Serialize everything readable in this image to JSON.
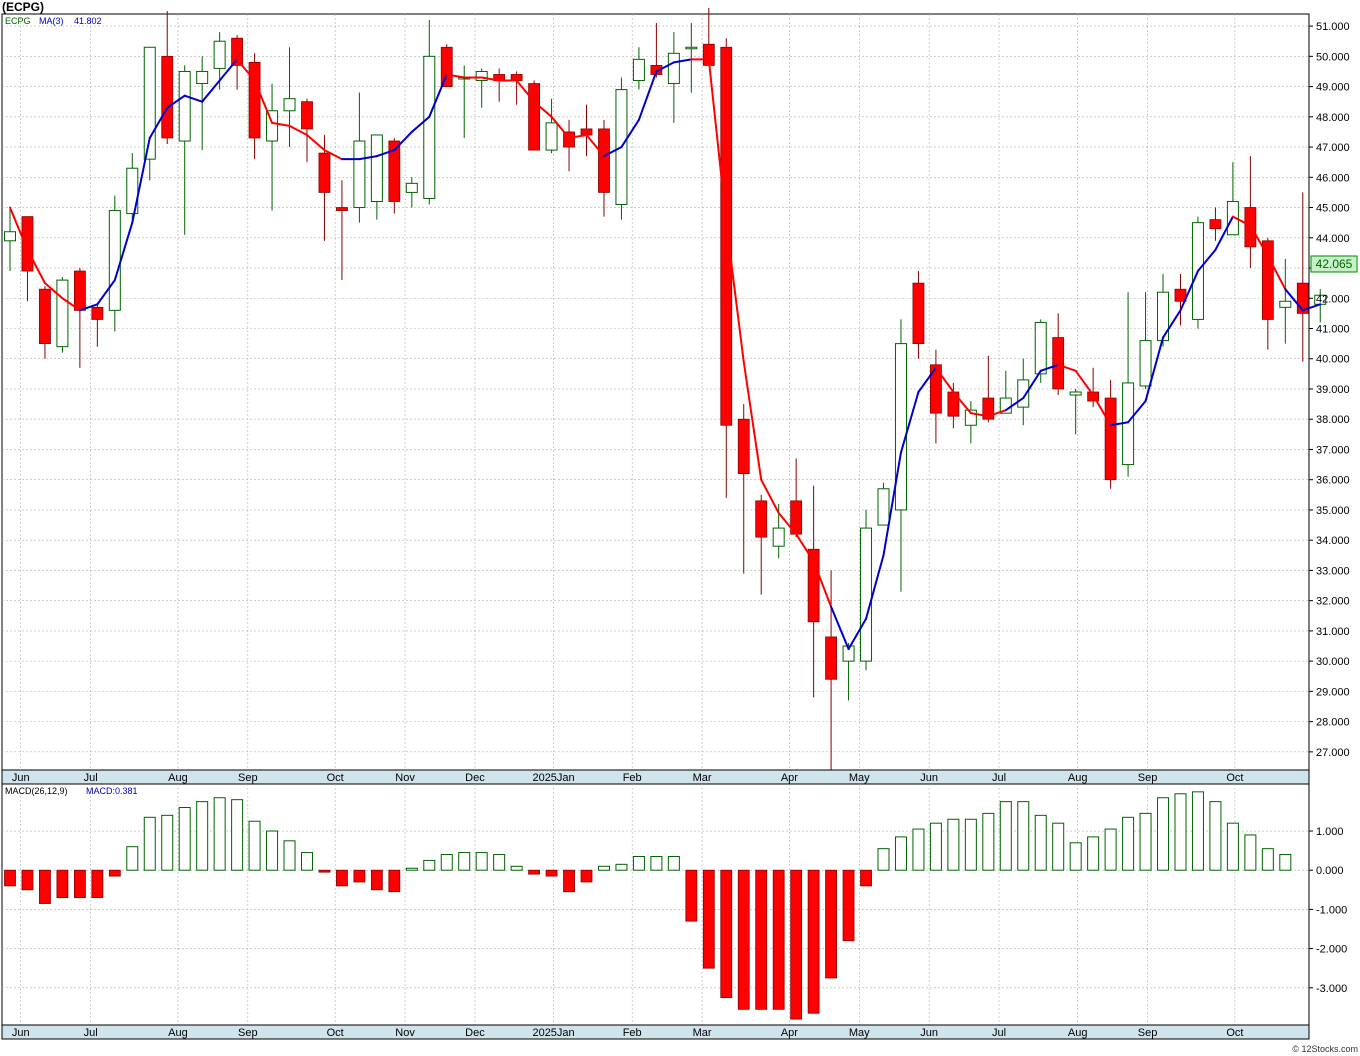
{
  "ticker_title": "(ECPG)",
  "legend": {
    "symbol": "ECPG",
    "ma_label": "MA(3)",
    "ma_value": "41.802"
  },
  "macd_legend": {
    "params": "MACD(26,12,9)",
    "value": "MACD:0.381"
  },
  "last_price_label": "42.065",
  "credit": "© 12Stocks.com",
  "colors": {
    "up_candle": "#006400",
    "down_candle": "#ff0000",
    "ma_up": "#0000cc",
    "ma_down": "#ff0000",
    "axis_band": "#d0e4ec",
    "last_price_bg": "#c8f0c8"
  },
  "chart_data": [
    {
      "type": "candlestick",
      "frequency": "weekly",
      "price_axis_ticks": [
        "27.000",
        "28.000",
        "29.000",
        "30.000",
        "31.000",
        "32.000",
        "33.000",
        "34.000",
        "35.000",
        "36.000",
        "37.000",
        "38.000",
        "39.000",
        "40.000",
        "41.000",
        "42.000",
        "43.000",
        "44.000",
        "45.000",
        "46.000",
        "47.000",
        "48.000",
        "49.000",
        "50.000",
        "51.000"
      ],
      "ylim": [
        26.4,
        51.4
      ],
      "month_labels": [
        {
          "label": "Jun",
          "week": 0.5
        },
        {
          "label": "Jul",
          "week": 4.5
        },
        {
          "label": "Aug",
          "week": 9.5
        },
        {
          "label": "Sep",
          "week": 13.5
        },
        {
          "label": "Oct",
          "week": 18.5
        },
        {
          "label": "Nov",
          "week": 22.5
        },
        {
          "label": "Dec",
          "week": 26.5
        },
        {
          "label": "2025Jan",
          "week": 31
        },
        {
          "label": "Feb",
          "week": 35.5
        },
        {
          "label": "Mar",
          "week": 39.5
        },
        {
          "label": "Apr",
          "week": 44.5
        },
        {
          "label": "May",
          "week": 48.5
        },
        {
          "label": "Jun",
          "week": 52.5
        },
        {
          "label": "Jul",
          "week": 56.5
        },
        {
          "label": "Aug",
          "week": 61
        },
        {
          "label": "Sep",
          "week": 65
        },
        {
          "label": "Oct",
          "week": 70
        }
      ],
      "ohlc": [
        [
          43.9,
          45.0,
          42.9,
          44.2
        ],
        [
          44.7,
          44.7,
          41.9,
          42.9
        ],
        [
          42.3,
          42.4,
          40.0,
          40.5
        ],
        [
          40.4,
          42.7,
          40.2,
          42.6
        ],
        [
          42.9,
          43.0,
          39.7,
          41.6
        ],
        [
          41.7,
          41.8,
          40.4,
          41.3
        ],
        [
          41.6,
          45.4,
          40.9,
          44.9
        ],
        [
          44.8,
          46.8,
          44.5,
          46.3
        ],
        [
          46.6,
          50.3,
          45.9,
          50.3
        ],
        [
          50.0,
          51.5,
          47.1,
          47.3
        ],
        [
          47.2,
          49.7,
          44.1,
          49.5
        ],
        [
          49.1,
          50.0,
          46.9,
          49.5
        ],
        [
          49.6,
          50.8,
          48.9,
          50.5
        ],
        [
          50.6,
          50.7,
          48.9,
          49.7
        ],
        [
          49.8,
          50.1,
          46.6,
          47.3
        ],
        [
          47.2,
          49.1,
          44.9,
          48.2
        ],
        [
          48.2,
          50.3,
          47.0,
          48.6
        ],
        [
          48.5,
          48.6,
          46.5,
          47.6
        ],
        [
          46.8,
          47.4,
          43.9,
          45.5
        ],
        [
          45.0,
          45.9,
          42.6,
          44.9
        ],
        [
          45.0,
          48.8,
          44.5,
          47.2
        ],
        [
          45.2,
          47.4,
          44.6,
          47.4
        ],
        [
          47.2,
          47.3,
          44.8,
          45.2
        ],
        [
          45.5,
          46.0,
          45.0,
          45.8
        ],
        [
          45.3,
          51.2,
          45.1,
          50.0
        ],
        [
          50.3,
          50.4,
          49.1,
          49.0
        ],
        [
          49.3,
          49.7,
          47.3,
          49.3
        ],
        [
          49.2,
          49.6,
          48.3,
          49.5
        ],
        [
          49.4,
          49.6,
          48.5,
          49.2
        ],
        [
          49.4,
          49.5,
          48.4,
          49.2
        ],
        [
          49.1,
          49.2,
          46.9,
          46.9
        ],
        [
          46.9,
          48.6,
          46.8,
          47.8
        ],
        [
          47.5,
          47.9,
          46.2,
          47.0
        ],
        [
          47.6,
          48.4,
          46.7,
          47.4
        ],
        [
          47.6,
          47.9,
          44.7,
          45.5
        ],
        [
          45.1,
          49.3,
          44.6,
          48.9
        ],
        [
          49.2,
          50.3,
          48.9,
          49.9
        ],
        [
          49.7,
          51.1,
          49.3,
          49.4
        ],
        [
          49.1,
          50.8,
          47.8,
          50.1
        ],
        [
          50.3,
          51.1,
          48.8,
          50.3
        ],
        [
          50.4,
          51.6,
          49.7,
          49.7
        ],
        [
          50.3,
          50.6,
          35.4,
          37.8
        ],
        [
          38.0,
          38.5,
          32.9,
          36.2
        ],
        [
          35.3,
          35.5,
          32.2,
          34.1
        ],
        [
          33.8,
          35.2,
          33.4,
          34.4
        ],
        [
          35.3,
          36.7,
          34.1,
          34.2
        ],
        [
          33.7,
          35.8,
          28.8,
          31.3
        ],
        [
          30.8,
          33.0,
          26.4,
          29.4
        ],
        [
          30.0,
          30.6,
          28.7,
          30.5
        ],
        [
          30.0,
          35.0,
          29.7,
          34.4
        ],
        [
          34.5,
          35.9,
          34.5,
          35.7
        ],
        [
          35.0,
          41.3,
          32.3,
          40.5
        ],
        [
          42.5,
          42.9,
          40.0,
          40.5
        ],
        [
          39.8,
          40.3,
          37.2,
          38.2
        ],
        [
          38.9,
          39.2,
          37.7,
          38.1
        ],
        [
          37.8,
          38.6,
          37.2,
          38.3
        ],
        [
          38.7,
          40.1,
          37.9,
          38.0
        ],
        [
          38.2,
          39.6,
          38.2,
          38.7
        ],
        [
          38.4,
          40.0,
          37.8,
          39.3
        ],
        [
          39.5,
          41.3,
          39.2,
          41.2
        ],
        [
          40.7,
          41.5,
          38.8,
          39.0
        ],
        [
          38.8,
          39.0,
          37.5,
          38.9
        ],
        [
          38.9,
          39.7,
          38.4,
          38.6
        ],
        [
          38.7,
          39.3,
          35.7,
          36.0
        ],
        [
          36.5,
          42.2,
          36.1,
          39.2
        ],
        [
          39.1,
          42.2,
          39.0,
          40.6
        ],
        [
          40.6,
          42.8,
          40.4,
          42.2
        ],
        [
          42.3,
          42.8,
          41.1,
          41.9
        ],
        [
          41.3,
          44.7,
          41.0,
          44.5
        ],
        [
          44.6,
          45.0,
          43.9,
          44.3
        ],
        [
          44.1,
          46.5,
          44.2,
          45.2
        ],
        [
          45.0,
          46.7,
          43.0,
          43.7
        ],
        [
          43.9,
          44.0,
          40.3,
          41.3
        ],
        [
          41.7,
          43.3,
          40.5,
          41.9
        ],
        [
          42.5,
          45.5,
          39.9,
          41.5
        ],
        [
          41.8,
          42.3,
          41.2,
          42.1
        ]
      ],
      "ma3": [
        45.0,
        43.6,
        42.5,
        42.0,
        41.6,
        41.8,
        42.6,
        44.5,
        47.3,
        48.3,
        48.7,
        48.5,
        49.2,
        49.9,
        49.2,
        47.8,
        47.7,
        47.4,
        46.9,
        46.6,
        46.6,
        46.7,
        46.9,
        47.5,
        48.0,
        49.4,
        49.3,
        49.3,
        49.2,
        49.2,
        48.5,
        48.0,
        47.3,
        47.4,
        46.7,
        47.0,
        47.9,
        49.5,
        49.8,
        49.9,
        49.9,
        44.5,
        39.9,
        36.0,
        34.9,
        34.2,
        33.3,
        31.8,
        30.4,
        31.4,
        33.5,
        36.9,
        38.9,
        39.7,
        38.9,
        38.2,
        38.1,
        38.3,
        38.7,
        39.6,
        39.8,
        39.6,
        38.8,
        37.8,
        37.9,
        38.6,
        40.7,
        41.6,
        42.9,
        43.6,
        44.7,
        44.4,
        43.4,
        42.3,
        41.6,
        41.8
      ],
      "ma_trend": [
        "d",
        "d",
        "d",
        "d",
        "d",
        "u",
        "u",
        "u",
        "u",
        "u",
        "u",
        "u",
        "u",
        "u",
        "d",
        "d",
        "d",
        "d",
        "d",
        "d",
        "u",
        "u",
        "u",
        "u",
        "u",
        "u",
        "d",
        "d",
        "d",
        "d",
        "d",
        "d",
        "d",
        "d",
        "d",
        "u",
        "u",
        "u",
        "u",
        "u",
        "d",
        "d",
        "d",
        "d",
        "d",
        "d",
        "d",
        "d",
        "u",
        "u",
        "u",
        "u",
        "u",
        "u",
        "d",
        "d",
        "d",
        "d",
        "u",
        "u",
        "u",
        "d",
        "d",
        "d",
        "u",
        "u",
        "u",
        "u",
        "u",
        "u",
        "u",
        "d",
        "d",
        "d",
        "u",
        "u"
      ]
    },
    {
      "type": "bar",
      "name": "MACD(26,12,9)",
      "ylim": [
        -3.95,
        2.2
      ],
      "axis_ticks": [
        "1.000",
        "0.000",
        "-1.000",
        "-2.000",
        "-3.000"
      ],
      "values": [
        -0.4,
        -0.5,
        -0.85,
        -0.7,
        -0.7,
        -0.7,
        -0.15,
        0.6,
        1.35,
        1.4,
        1.6,
        1.75,
        1.85,
        1.8,
        1.25,
        1.0,
        0.75,
        0.45,
        -0.05,
        -0.4,
        -0.3,
        -0.5,
        -0.55,
        0.05,
        0.25,
        0.4,
        0.45,
        0.45,
        0.4,
        0.1,
        -0.1,
        -0.15,
        -0.55,
        -0.3,
        0.1,
        0.15,
        0.35,
        0.35,
        0.35,
        -1.3,
        -2.5,
        -3.25,
        -3.55,
        -3.55,
        -3.55,
        -3.8,
        -3.65,
        -2.75,
        -1.8,
        -0.4,
        0.55,
        0.85,
        1.05,
        1.2,
        1.3,
        1.3,
        1.45,
        1.75,
        1.75,
        1.4,
        1.2,
        0.7,
        0.85,
        1.05,
        1.35,
        1.45,
        1.85,
        1.95,
        2.0,
        1.75,
        1.2,
        0.9,
        0.55,
        0.4
      ]
    }
  ]
}
